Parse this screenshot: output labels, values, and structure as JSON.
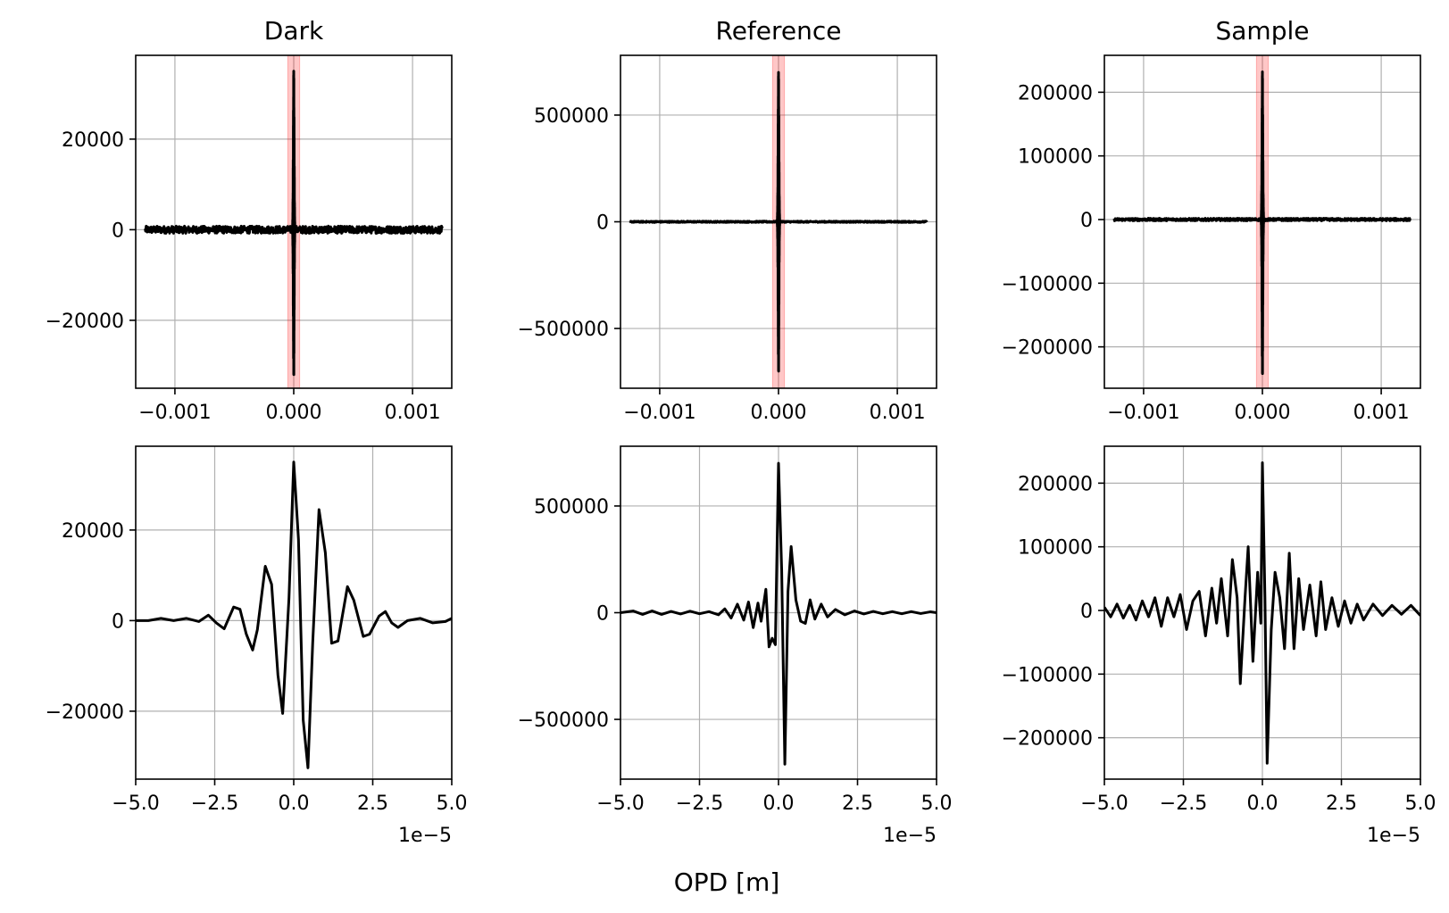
{
  "figure": {
    "xlabel": "OPD [m]"
  },
  "chart_data": [
    {
      "type": "line",
      "title": "Dark",
      "row": 0,
      "col": 0,
      "xlim": [
        -0.00133,
        0.00133
      ],
      "ylim": [
        -35000,
        38500
      ],
      "xticks": [
        -0.001,
        0,
        0.001
      ],
      "xtick_labels": [
        "−0.001",
        "0.000",
        "0.001"
      ],
      "yticks": [
        -20000,
        0,
        20000
      ],
      "ytick_labels": [
        "−20000",
        "0",
        "20000"
      ],
      "offset_label": "",
      "grid": true,
      "highlight_band": [
        -5e-05,
        5e-05
      ],
      "series_color": "#000000",
      "signal": {
        "x_range": [
          -0.00125,
          0.00125
        ],
        "noise": 800,
        "peak": 35000,
        "trough": -32000,
        "spike_width": 1.5e-05
      }
    },
    {
      "type": "line",
      "title": "Reference",
      "row": 0,
      "col": 1,
      "xlim": [
        -0.00133,
        0.00133
      ],
      "ylim": [
        -780000,
        780000
      ],
      "xticks": [
        -0.001,
        0,
        0.001
      ],
      "xtick_labels": [
        "−0.001",
        "0.000",
        "0.001"
      ],
      "yticks": [
        -500000,
        0,
        500000
      ],
      "ytick_labels": [
        "−500000",
        "0",
        "500000"
      ],
      "offset_label": "",
      "grid": true,
      "highlight_band": [
        -5e-05,
        5e-05
      ],
      "series_color": "#000000",
      "signal": {
        "x_range": [
          -0.00125,
          0.00125
        ],
        "noise": 3000,
        "peak": 700000,
        "trough": -700000,
        "spike_width": 1.5e-05
      }
    },
    {
      "type": "line",
      "title": "Sample",
      "row": 0,
      "col": 2,
      "xlim": [
        -0.00133,
        0.00133
      ],
      "ylim": [
        -265000,
        258000
      ],
      "xticks": [
        -0.001,
        0,
        0.001
      ],
      "xtick_labels": [
        "−0.001",
        "0.000",
        "0.001"
      ],
      "yticks": [
        -200000,
        -100000,
        0,
        100000,
        200000
      ],
      "ytick_labels": [
        "−200000",
        "−100000",
        "0",
        "100000",
        "200000"
      ],
      "offset_label": "",
      "grid": true,
      "highlight_band": [
        -5e-05,
        5e-05
      ],
      "series_color": "#000000",
      "signal": {
        "x_range": [
          -0.00125,
          0.00125
        ],
        "noise": 2000,
        "peak": 232000,
        "trough": -242000,
        "spike_width": 1.5e-05
      }
    },
    {
      "type": "line",
      "title": "",
      "row": 1,
      "col": 0,
      "xlim": [
        -5e-05,
        5e-05
      ],
      "ylim": [
        -35000,
        38500
      ],
      "xticks": [
        -5e-05,
        -2.5e-05,
        0,
        2.5e-05,
        5e-05
      ],
      "xtick_labels": [
        "−5.0",
        "−2.5",
        "0.0",
        "2.5",
        "5.0"
      ],
      "yticks": [
        -20000,
        0,
        20000
      ],
      "ytick_labels": [
        "−20000",
        "0",
        "20000"
      ],
      "offset_label": "1e−5",
      "grid": true,
      "series_color": "#000000",
      "points": [
        [
          -5.0,
          0
        ],
        [
          -4.6,
          0
        ],
        [
          -4.2,
          500
        ],
        [
          -3.8,
          0
        ],
        [
          -3.4,
          500
        ],
        [
          -3.0,
          -200
        ],
        [
          -2.7,
          1200
        ],
        [
          -2.45,
          -500
        ],
        [
          -2.2,
          -1800
        ],
        [
          -1.9,
          3000
        ],
        [
          -1.7,
          2500
        ],
        [
          -1.5,
          -3000
        ],
        [
          -1.3,
          -6500
        ],
        [
          -1.15,
          -2000
        ],
        [
          -0.9,
          12000
        ],
        [
          -0.7,
          8000
        ],
        [
          -0.5,
          -12000
        ],
        [
          -0.35,
          -20500
        ],
        [
          -0.15,
          5000
        ],
        [
          0.0,
          35000
        ],
        [
          0.15,
          18000
        ],
        [
          0.3,
          -22000
        ],
        [
          0.45,
          -32500
        ],
        [
          0.6,
          -5000
        ],
        [
          0.8,
          24500
        ],
        [
          1.0,
          15000
        ],
        [
          1.2,
          -5000
        ],
        [
          1.4,
          -4500
        ],
        [
          1.7,
          7500
        ],
        [
          1.9,
          4500
        ],
        [
          2.2,
          -3500
        ],
        [
          2.4,
          -3000
        ],
        [
          2.7,
          1000
        ],
        [
          2.9,
          2000
        ],
        [
          3.1,
          -500
        ],
        [
          3.3,
          -1500
        ],
        [
          3.6,
          0
        ],
        [
          4.0,
          500
        ],
        [
          4.4,
          -500
        ],
        [
          4.8,
          -200
        ],
        [
          5.0,
          500
        ]
      ]
    },
    {
      "type": "line",
      "title": "",
      "row": 1,
      "col": 1,
      "xlim": [
        -5e-05,
        5e-05
      ],
      "ylim": [
        -780000,
        780000
      ],
      "xticks": [
        -5e-05,
        -2.5e-05,
        0,
        2.5e-05,
        5e-05
      ],
      "xtick_labels": [
        "−5.0",
        "−2.5",
        "0.0",
        "2.5",
        "5.0"
      ],
      "yticks": [
        -500000,
        0,
        500000
      ],
      "ytick_labels": [
        "−500000",
        "0",
        "500000"
      ],
      "offset_label": "1e−5",
      "grid": true,
      "series_color": "#000000",
      "points": [
        [
          -5.0,
          0
        ],
        [
          -4.6,
          8000
        ],
        [
          -4.3,
          -8000
        ],
        [
          -4.0,
          8000
        ],
        [
          -3.7,
          -8000
        ],
        [
          -3.4,
          6000
        ],
        [
          -3.1,
          -6000
        ],
        [
          -2.8,
          7000
        ],
        [
          -2.5,
          -5000
        ],
        [
          -2.2,
          5000
        ],
        [
          -1.9,
          -10000
        ],
        [
          -1.7,
          18000
        ],
        [
          -1.5,
          -25000
        ],
        [
          -1.3,
          40000
        ],
        [
          -1.1,
          -35000
        ],
        [
          -0.95,
          50000
        ],
        [
          -0.8,
          -70000
        ],
        [
          -0.65,
          45000
        ],
        [
          -0.55,
          -40000
        ],
        [
          -0.4,
          110000
        ],
        [
          -0.3,
          -160000
        ],
        [
          -0.2,
          -120000
        ],
        [
          -0.1,
          -150000
        ],
        [
          0.0,
          700000
        ],
        [
          0.1,
          200000
        ],
        [
          0.2,
          -710000
        ],
        [
          0.3,
          100000
        ],
        [
          0.4,
          310000
        ],
        [
          0.55,
          60000
        ],
        [
          0.7,
          -40000
        ],
        [
          0.85,
          -50000
        ],
        [
          1.0,
          60000
        ],
        [
          1.15,
          -30000
        ],
        [
          1.35,
          40000
        ],
        [
          1.55,
          -20000
        ],
        [
          1.8,
          15000
        ],
        [
          2.1,
          -10000
        ],
        [
          2.4,
          8000
        ],
        [
          2.7,
          -6000
        ],
        [
          3.0,
          6000
        ],
        [
          3.3,
          -5000
        ],
        [
          3.6,
          5000
        ],
        [
          3.9,
          -5000
        ],
        [
          4.2,
          5000
        ],
        [
          4.5,
          -4000
        ],
        [
          4.8,
          4000
        ],
        [
          5.0,
          0
        ]
      ]
    },
    {
      "type": "line",
      "title": "",
      "row": 1,
      "col": 2,
      "xlim": [
        -5e-05,
        5e-05
      ],
      "ylim": [
        -265000,
        258000
      ],
      "xticks": [
        -5e-05,
        -2.5e-05,
        0,
        2.5e-05,
        5e-05
      ],
      "xtick_labels": [
        "−5.0",
        "−2.5",
        "0.0",
        "2.5",
        "5.0"
      ],
      "yticks": [
        -200000,
        -100000,
        0,
        100000,
        200000
      ],
      "ytick_labels": [
        "−200000",
        "−100000",
        "0",
        "100000",
        "200000"
      ],
      "offset_label": "1e−5",
      "grid": true,
      "series_color": "#000000",
      "points": [
        [
          -5.0,
          5000
        ],
        [
          -4.8,
          -10000
        ],
        [
          -4.6,
          10000
        ],
        [
          -4.4,
          -12000
        ],
        [
          -4.2,
          8000
        ],
        [
          -4.0,
          -15000
        ],
        [
          -3.8,
          15000
        ],
        [
          -3.6,
          -10000
        ],
        [
          -3.4,
          20000
        ],
        [
          -3.2,
          -25000
        ],
        [
          -3.0,
          20000
        ],
        [
          -2.8,
          -10000
        ],
        [
          -2.6,
          25000
        ],
        [
          -2.4,
          -30000
        ],
        [
          -2.2,
          15000
        ],
        [
          -2.0,
          30000
        ],
        [
          -1.8,
          -40000
        ],
        [
          -1.6,
          35000
        ],
        [
          -1.45,
          -20000
        ],
        [
          -1.3,
          50000
        ],
        [
          -1.1,
          -40000
        ],
        [
          -0.95,
          80000
        ],
        [
          -0.8,
          20000
        ],
        [
          -0.7,
          -115000
        ],
        [
          -0.55,
          20000
        ],
        [
          -0.45,
          100000
        ],
        [
          -0.3,
          -80000
        ],
        [
          -0.15,
          60000
        ],
        [
          -0.05,
          -20000
        ],
        [
          0.0,
          232000
        ],
        [
          0.08,
          20000
        ],
        [
          0.15,
          -240000
        ],
        [
          0.28,
          -30000
        ],
        [
          0.4,
          60000
        ],
        [
          0.55,
          20000
        ],
        [
          0.7,
          -60000
        ],
        [
          0.85,
          90000
        ],
        [
          1.0,
          -60000
        ],
        [
          1.15,
          50000
        ],
        [
          1.3,
          -30000
        ],
        [
          1.5,
          40000
        ],
        [
          1.7,
          -40000
        ],
        [
          1.85,
          45000
        ],
        [
          2.0,
          -30000
        ],
        [
          2.2,
          20000
        ],
        [
          2.4,
          -25000
        ],
        [
          2.6,
          15000
        ],
        [
          2.8,
          -20000
        ],
        [
          3.0,
          10000
        ],
        [
          3.2,
          -15000
        ],
        [
          3.5,
          10000
        ],
        [
          3.8,
          -8000
        ],
        [
          4.1,
          8000
        ],
        [
          4.4,
          -6000
        ],
        [
          4.7,
          8000
        ],
        [
          5.0,
          -8000
        ]
      ]
    }
  ]
}
